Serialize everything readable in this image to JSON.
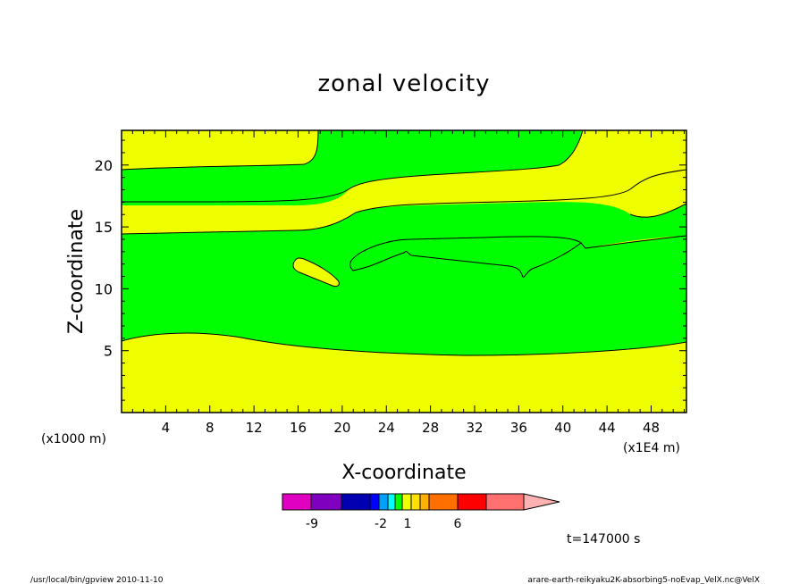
{
  "chart_data": {
    "type": "contour",
    "title": "zonal velocity",
    "xlabel": "X-coordinate",
    "ylabel": "Z-coordinate",
    "x_unit_label": "(x1E4 m)",
    "y_unit_label": "(x1000 m)",
    "xlim": [
      0,
      51.2
    ],
    "ylim": [
      0,
      22.8
    ],
    "x_ticks": [
      "4",
      "8",
      "12",
      "16",
      "20",
      "24",
      "28",
      "32",
      "36",
      "40",
      "44",
      "48"
    ],
    "y_ticks": [
      "5",
      "10",
      "15",
      "20"
    ],
    "fill_colors": {
      "positive": "#f0ff00",
      "negative": "#00ff00"
    },
    "colorbar": {
      "tick_labels": [
        "-9",
        "-2",
        "1",
        "6"
      ],
      "colors": [
        "#e000c0",
        "#8000c0",
        "#0000b0",
        "#0000ff",
        "#00a0ff",
        "#00ffff",
        "#00ff00",
        "#f0ff00",
        "#ffe000",
        "#ffb000",
        "#ff7000",
        "#ff0000",
        "#ff7070",
        "#ffb0b0"
      ]
    },
    "time_label": "t=147000 s"
  },
  "footer": {
    "left": "/usr/local/bin/gpview   2010-11-10",
    "right": "arare-earth-reikyaku2K-absorbing5-noEvap_VelX.nc@VelX"
  }
}
